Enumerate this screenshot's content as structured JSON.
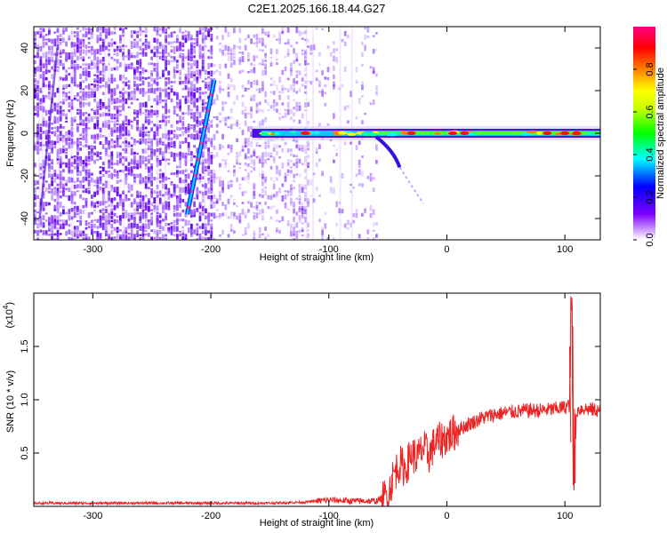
{
  "title": "C2E1.2025.166.18.44.G27",
  "chart_data": [
    {
      "type": "heatmap",
      "xlabel": "Height of straight line (km)",
      "ylabel": "Frequency (Hz)",
      "xlim": [
        -350,
        130
      ],
      "ylim": [
        -50,
        50
      ],
      "xticks": [
        -300,
        -200,
        -100,
        0,
        100
      ],
      "yticks": [
        -40,
        -20,
        0,
        20,
        40
      ],
      "colorbar": {
        "label": "Normalized spectral amplitude",
        "range": [
          0,
          1
        ],
        "ticks": [
          "0.0",
          "0.2",
          "0.4",
          "0.6",
          "0.8"
        ],
        "colors": [
          "#ffffff",
          "#8000ff",
          "#0000ff",
          "#00ffff",
          "#00ff00",
          "#ffff00",
          "#ff8000",
          "#ff0000",
          "#ff0080"
        ]
      },
      "features": {
        "noise_region_km": [
          -350,
          -75
        ],
        "diagonal_streak": {
          "x": [
            -220,
            -197
          ],
          "y": [
            -38,
            25
          ]
        },
        "carrier_line": {
          "x": [
            -165,
            130
          ],
          "y": 0
        }
      }
    },
    {
      "type": "line",
      "xlabel": "Height of straight line (km)",
      "ylabel": "SNR (10 * v/v)",
      "multiplier": "(x10",
      "multiplier_exp": "4",
      "xlim": [
        -350,
        130
      ],
      "ylim": [
        0,
        2.0
      ],
      "xticks": [
        -300,
        -200,
        -100,
        0,
        100
      ],
      "yticks": [
        "0.5",
        "1.0",
        "1.5"
      ],
      "series": [
        {
          "color": "#ee2222",
          "x": [
            -350,
            -300,
            -250,
            -200,
            -150,
            -120,
            -100,
            -80,
            -60,
            -50,
            -45,
            -40,
            -35,
            -30,
            -25,
            -20,
            -15,
            -10,
            -5,
            0,
            10,
            20,
            30,
            40,
            50,
            60,
            70,
            80,
            90,
            100,
            104,
            106,
            108,
            110,
            115,
            120,
            130
          ],
          "y": [
            0.03,
            0.03,
            0.03,
            0.03,
            0.03,
            0.04,
            0.06,
            0.05,
            0.05,
            0.1,
            0.3,
            0.4,
            0.35,
            0.5,
            0.45,
            0.55,
            0.48,
            0.6,
            0.62,
            0.65,
            0.72,
            0.78,
            0.83,
            0.86,
            0.88,
            0.89,
            0.9,
            0.9,
            0.91,
            0.93,
            0.95,
            1.9,
            0.35,
            0.9,
            0.92,
            0.91,
            0.9
          ]
        }
      ]
    }
  ]
}
